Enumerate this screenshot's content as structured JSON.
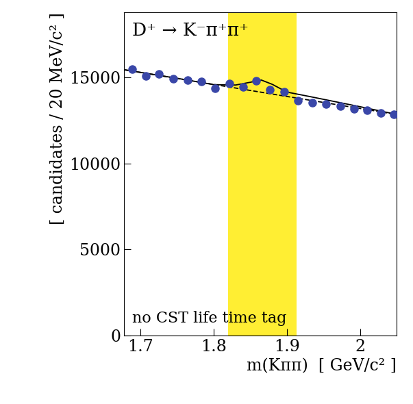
{
  "chart_data": {
    "type": "scatter",
    "title": "D⁺ → K⁻π⁺π⁺",
    "annotations": [
      "no CST life time tag"
    ],
    "x_label": "m(Kππ)  [ GeV/c² ]",
    "y_label": "[ candidates / 20 MeV/c² ]",
    "signal_region": [
      1.82,
      1.913
    ],
    "signal_region_color": "#ffee33",
    "series": [
      {
        "type": "scatter",
        "color": "#3a47a8",
        "marker": "circle",
        "x": [
          1.688,
          1.707,
          1.725,
          1.745,
          1.764,
          1.783,
          1.802,
          1.821,
          1.84,
          1.858,
          1.877,
          1.896,
          1.915,
          1.935,
          1.954,
          1.973,
          1.992,
          2.01,
          2.029,
          2.046
        ],
        "values": [
          15500,
          15080,
          15210,
          14920,
          14830,
          14750,
          14370,
          14660,
          14450,
          14790,
          14290,
          14160,
          13650,
          13530,
          13450,
          13320,
          13190,
          13110,
          12940,
          12860
        ]
      },
      {
        "type": "line",
        "color": "#000000",
        "line_style": "solid",
        "x": [
          1.677,
          1.75,
          1.8,
          1.83,
          1.85,
          1.865,
          1.88,
          1.9,
          1.93,
          2.0,
          2.05
        ],
        "values": [
          15450,
          14950,
          14580,
          14560,
          14720,
          14850,
          14600,
          14150,
          13900,
          13300,
          12850
        ]
      },
      {
        "type": "line",
        "color": "#000000",
        "line_style": "dashed",
        "x": [
          1.677,
          2.05
        ],
        "values": [
          15450,
          12850
        ]
      }
    ],
    "xlim": [
      1.677,
      2.05
    ],
    "xticks": [
      1.7,
      1.8,
      1.9,
      2
    ],
    "ylim": [
      0,
      18800
    ],
    "yticks": [
      0,
      5000,
      10000,
      15000
    ],
    "grid": false
  }
}
